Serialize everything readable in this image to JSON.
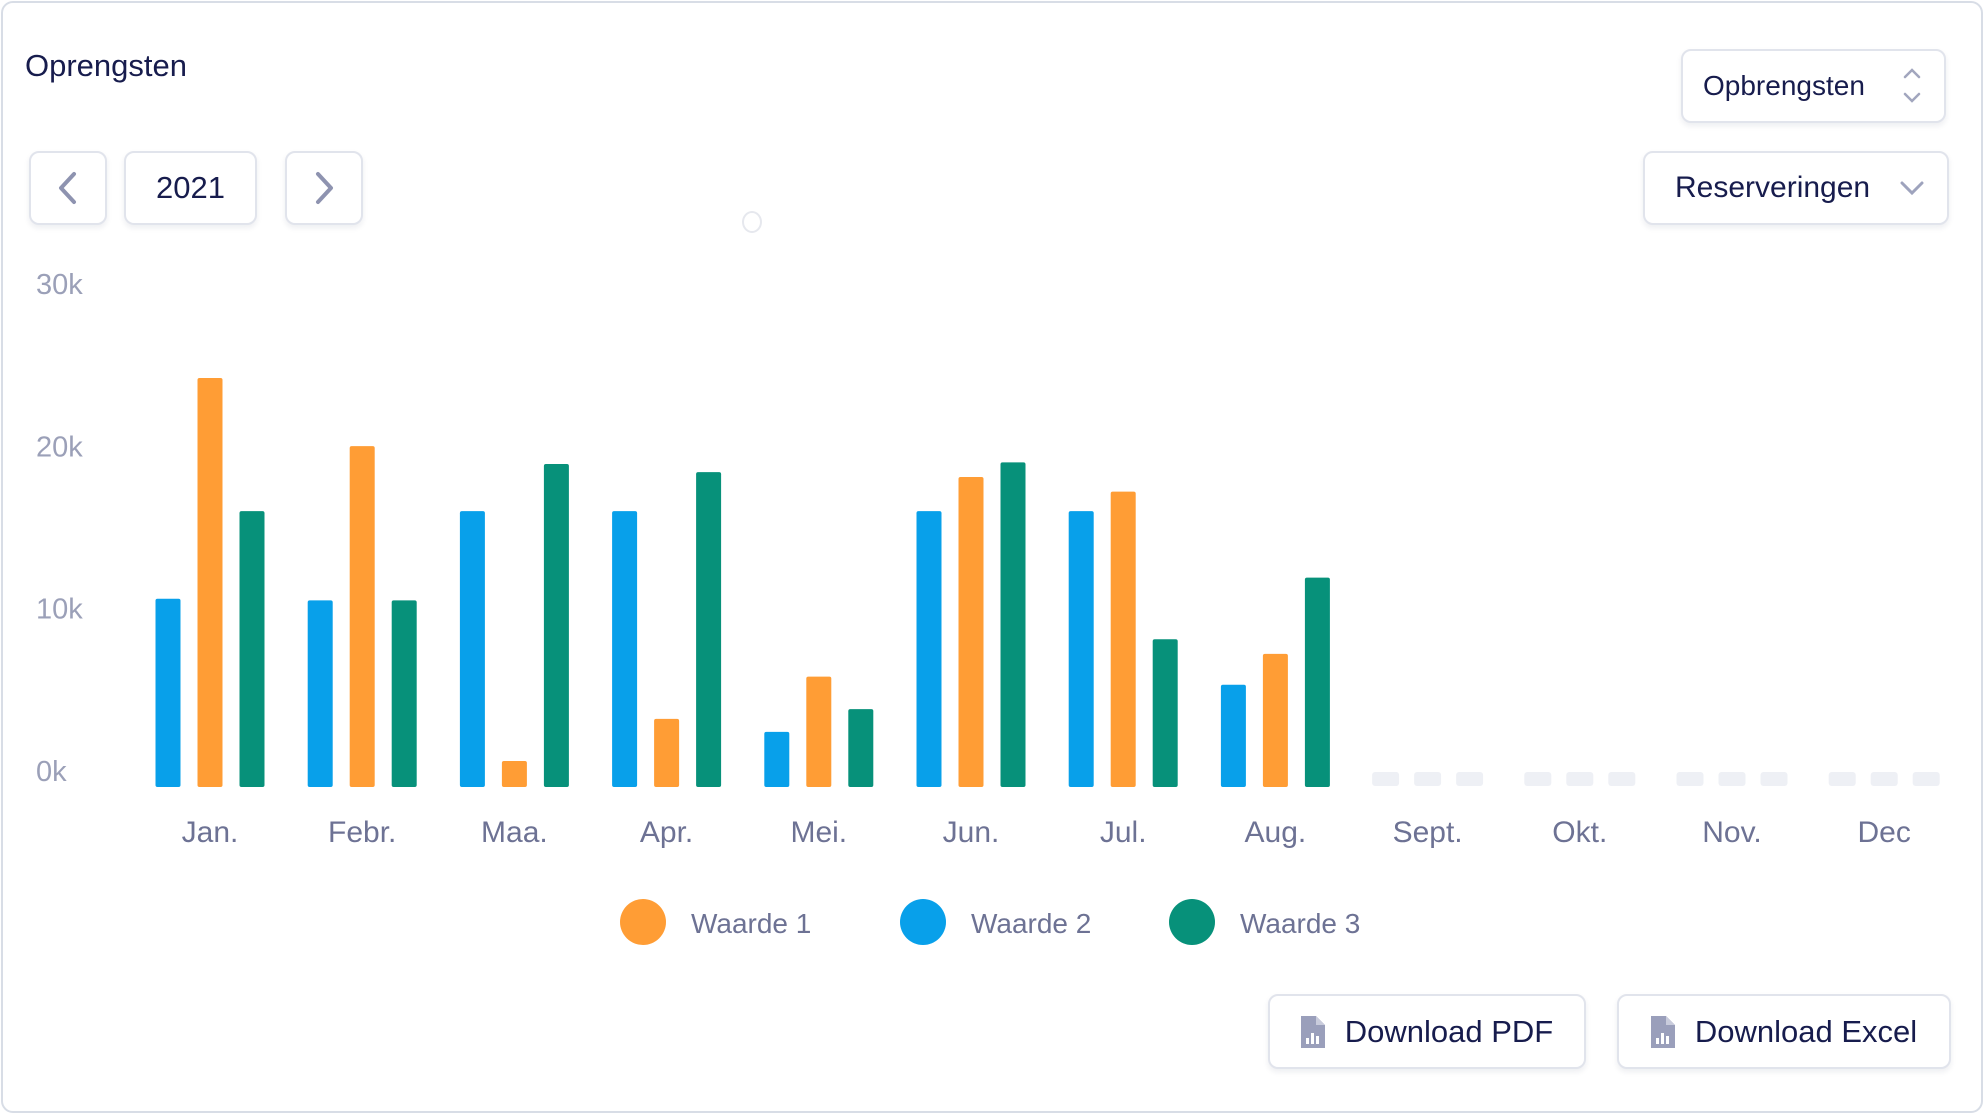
{
  "header": {
    "title": "Oprengsten",
    "year": "2021",
    "metric_select": "Opbrengsten",
    "category_select": "Reserveringen"
  },
  "icons": {
    "prev": "chevron-left-icon",
    "next": "chevron-right-icon",
    "select": "chevron-up-down-icon",
    "dropdown": "chevron-down-icon",
    "download": "file-chart-icon"
  },
  "actions": {
    "download_pdf": "Download PDF",
    "download_excel": "Download Excel"
  },
  "chart_data": {
    "type": "bar",
    "title": "Oprengsten",
    "categories": [
      "Jan.",
      "Febr.",
      "Maa.",
      "Apr.",
      "Mei.",
      "Jun.",
      "Jul.",
      "Aug.",
      "Sept.",
      "Okt.",
      "Nov.",
      "Dec"
    ],
    "y_ticks": [
      "0k",
      "10k",
      "20k",
      "30k"
    ],
    "ylim": [
      0,
      30000
    ],
    "legend_position": "bottom",
    "series": [
      {
        "name": "Waarde 2",
        "color": "#08a0ea",
        "values": [
          11600,
          11500,
          17000,
          17000,
          3400,
          17000,
          17000,
          6300,
          null,
          null,
          null,
          null
        ]
      },
      {
        "name": "Waarde 1",
        "color": "#ff9d35",
        "values": [
          25200,
          21000,
          1600,
          4200,
          6800,
          19100,
          18200,
          8200,
          null,
          null,
          null,
          null
        ]
      },
      {
        "name": "Waarde 3",
        "color": "#07917a",
        "values": [
          17000,
          11500,
          19900,
          19400,
          4800,
          20000,
          9100,
          12900,
          null,
          null,
          null,
          null
        ]
      }
    ],
    "legend": [
      "Waarde 1",
      "Waarde 2",
      "Waarde 3"
    ],
    "legend_colors": [
      "#ff9d35",
      "#08a0ea",
      "#07917a"
    ],
    "empty_color": "#eef0f5"
  }
}
